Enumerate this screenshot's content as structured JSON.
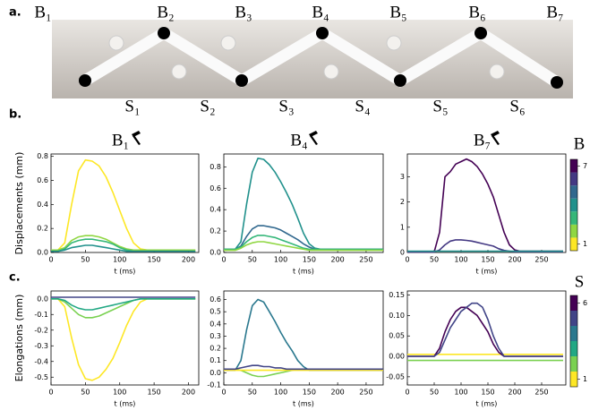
{
  "panel_labels": [
    "a.",
    "b.",
    "c."
  ],
  "photo": {
    "bars": [
      "B₁",
      "B₂",
      "B₃",
      "B₄",
      "B₅",
      "B₆",
      "B₇"
    ],
    "springs": [
      "S₁",
      "S₂",
      "S₃",
      "S₄",
      "S₅",
      "S₆"
    ]
  },
  "colorbars": [
    {
      "title": "B",
      "lim": [
        0.5,
        7.5
      ],
      "ticks": [
        1,
        7
      ],
      "colors": [
        "#fde725",
        "#90d743",
        "#35b779",
        "#21918c",
        "#31688e",
        "#443983",
        "#440154"
      ]
    },
    {
      "title": "S",
      "lim": [
        0.5,
        6.5
      ],
      "ticks": [
        1,
        6
      ],
      "colors": [
        "#fde725",
        "#7ad151",
        "#22a884",
        "#2a788e",
        "#414487",
        "#440154"
      ]
    }
  ],
  "chart_data": [
    {
      "type": "line",
      "title": "B₁",
      "ylabel": "Displacements (mm)",
      "xlabel": "t (ms)",
      "xlim": [
        0,
        215
      ],
      "xticks": [
        0,
        50,
        100,
        150,
        200
      ],
      "ylim": [
        0,
        0.82
      ],
      "yticks": [
        {
          "value": 0,
          "label": "0.0"
        },
        0.2,
        0.4,
        0.6,
        0.8
      ],
      "x": [
        0,
        10,
        20,
        30,
        40,
        50,
        60,
        70,
        80,
        90,
        100,
        110,
        120,
        130,
        140,
        150,
        160,
        170,
        180,
        190,
        200,
        210
      ],
      "series": [
        {
          "color": "#fde725",
          "values": [
            0.02,
            0.02,
            0.08,
            0.4,
            0.68,
            0.77,
            0.76,
            0.72,
            0.63,
            0.5,
            0.35,
            0.2,
            0.08,
            0.03,
            0.02,
            0.02,
            0.02,
            0.02,
            0.02,
            0.02,
            0.02,
            0.02
          ]
        },
        {
          "color": "#90d743",
          "values": [
            0.02,
            0.02,
            0.04,
            0.1,
            0.13,
            0.14,
            0.14,
            0.13,
            0.11,
            0.08,
            0.05,
            0.03,
            0.02,
            0.02,
            0.02,
            0.02,
            0.02,
            0.02,
            0.02,
            0.02,
            0.02,
            0.02
          ]
        },
        {
          "color": "#35b779",
          "values": [
            0.01,
            0.01,
            0.03,
            0.08,
            0.1,
            0.11,
            0.11,
            0.1,
            0.09,
            0.07,
            0.04,
            0.02,
            0.01,
            0.01,
            0.01,
            0.01,
            0.01,
            0.01,
            0.01,
            0.01,
            0.01,
            0.01
          ]
        },
        {
          "color": "#21918c",
          "values": [
            0.01,
            0.01,
            0.02,
            0.04,
            0.05,
            0.06,
            0.06,
            0.05,
            0.04,
            0.03,
            0.02,
            0.01,
            0.01,
            0.01,
            0.01,
            0.01,
            0.01,
            0.01,
            0.01,
            0.01,
            0.01,
            0.01
          ]
        }
      ]
    },
    {
      "type": "line",
      "title": "B₄",
      "xlabel": "t (ms)",
      "xlim": [
        0,
        280
      ],
      "xticks": [
        0,
        50,
        100,
        150,
        200,
        250
      ],
      "ylim": [
        0,
        0.92
      ],
      "yticks": [
        {
          "value": 0,
          "label": "0.0"
        },
        0.2,
        0.4,
        0.6,
        0.8
      ],
      "x": [
        0,
        10,
        20,
        30,
        40,
        50,
        60,
        70,
        80,
        90,
        100,
        110,
        120,
        130,
        140,
        150,
        160,
        170,
        180,
        190,
        200,
        210,
        220,
        230,
        240,
        250,
        260,
        270,
        280
      ],
      "series": [
        {
          "color": "#21918c",
          "values": [
            0.03,
            0.03,
            0.03,
            0.1,
            0.45,
            0.75,
            0.88,
            0.87,
            0.82,
            0.75,
            0.66,
            0.56,
            0.45,
            0.32,
            0.18,
            0.08,
            0.04,
            0.03,
            0.03,
            0.03,
            0.03,
            0.03,
            0.03,
            0.03,
            0.03,
            0.03,
            0.03,
            0.03,
            0.03
          ]
        },
        {
          "color": "#31688e",
          "values": [
            0.03,
            0.03,
            0.03,
            0.06,
            0.15,
            0.22,
            0.25,
            0.25,
            0.24,
            0.23,
            0.21,
            0.18,
            0.15,
            0.12,
            0.08,
            0.05,
            0.03,
            0.03,
            0.03,
            0.03,
            0.03,
            0.03,
            0.03,
            0.03,
            0.03,
            0.03,
            0.03,
            0.03,
            0.03
          ]
        },
        {
          "color": "#35b779",
          "values": [
            0.03,
            0.03,
            0.03,
            0.05,
            0.1,
            0.14,
            0.16,
            0.16,
            0.15,
            0.14,
            0.12,
            0.1,
            0.08,
            0.06,
            0.04,
            0.03,
            0.03,
            0.03,
            0.03,
            0.03,
            0.03,
            0.03,
            0.03,
            0.03,
            0.03,
            0.03,
            0.03,
            0.03,
            0.03
          ]
        },
        {
          "color": "#90d743",
          "values": [
            0.02,
            0.02,
            0.02,
            0.04,
            0.07,
            0.09,
            0.1,
            0.1,
            0.09,
            0.08,
            0.07,
            0.06,
            0.05,
            0.04,
            0.03,
            0.02,
            0.02,
            0.02,
            0.02,
            0.02,
            0.02,
            0.02,
            0.02,
            0.02,
            0.02,
            0.02,
            0.02,
            0.02,
            0.02
          ]
        }
      ]
    },
    {
      "type": "line",
      "title": "B₇",
      "xlabel": "t (ms)",
      "xlim": [
        0,
        295
      ],
      "xticks": [
        0,
        50,
        100,
        150,
        200,
        250
      ],
      "ylim": [
        0,
        3.9
      ],
      "yticks": [
        0,
        1,
        2,
        3
      ],
      "x": [
        0,
        10,
        20,
        30,
        40,
        50,
        60,
        70,
        80,
        90,
        100,
        110,
        120,
        130,
        140,
        150,
        160,
        170,
        180,
        190,
        200,
        210,
        220,
        230,
        240,
        250,
        260,
        270,
        280,
        290
      ],
      "series": [
        {
          "color": "#440154",
          "values": [
            0.02,
            0.02,
            0.02,
            0.02,
            0.02,
            0.02,
            0.8,
            3.0,
            3.2,
            3.5,
            3.6,
            3.7,
            3.6,
            3.4,
            3.1,
            2.7,
            2.2,
            1.5,
            0.8,
            0.3,
            0.1,
            0.05,
            0.05,
            0.05,
            0.05,
            0.05,
            0.05,
            0.05,
            0.05,
            0.05
          ]
        },
        {
          "color": "#443983",
          "values": [
            0.02,
            0.02,
            0.02,
            0.02,
            0.02,
            0.02,
            0.1,
            0.3,
            0.45,
            0.5,
            0.5,
            0.48,
            0.45,
            0.4,
            0.35,
            0.3,
            0.25,
            0.15,
            0.08,
            0.05,
            0.03,
            0.03,
            0.03,
            0.03,
            0.03,
            0.03,
            0.03,
            0.03,
            0.03,
            0.03
          ]
        },
        {
          "color": "#21918c",
          "values": [
            0.05,
            0.05,
            0.05,
            0.05,
            0.05,
            0.05,
            0.05,
            0.05,
            0.05,
            0.05,
            0.05,
            0.05,
            0.05,
            0.05,
            0.05,
            0.05,
            0.05,
            0.05,
            0.05,
            0.05,
            0.05,
            0.05,
            0.05,
            0.05,
            0.05,
            0.05,
            0.05,
            0.05,
            0.05,
            0.05
          ]
        }
      ]
    },
    {
      "type": "line",
      "ylabel": "Elongations (mm)",
      "xlabel": "t (ms)",
      "xlim": [
        0,
        215
      ],
      "xticks": [
        0,
        50,
        100,
        150,
        200
      ],
      "ylim": [
        -0.55,
        0.05
      ],
      "yticks": [
        {
          "value": 0,
          "label": "0.0"
        },
        -0.1,
        -0.2,
        -0.3,
        -0.4,
        -0.5
      ],
      "x": [
        0,
        10,
        20,
        30,
        40,
        50,
        60,
        70,
        80,
        90,
        100,
        110,
        120,
        130,
        140,
        150,
        160,
        170,
        180,
        190,
        200,
        210
      ],
      "series": [
        {
          "color": "#fde725",
          "values": [
            0,
            0,
            -0.05,
            -0.25,
            -0.42,
            -0.51,
            -0.52,
            -0.5,
            -0.45,
            -0.38,
            -0.28,
            -0.17,
            -0.08,
            -0.02,
            0,
            0,
            0,
            0,
            0,
            0,
            0,
            0
          ]
        },
        {
          "color": "#7ad151",
          "values": [
            0,
            0,
            -0.02,
            -0.06,
            -0.1,
            -0.12,
            -0.12,
            -0.11,
            -0.09,
            -0.07,
            -0.05,
            -0.03,
            -0.01,
            0,
            0,
            0,
            0,
            0,
            0,
            0,
            0,
            0
          ]
        },
        {
          "color": "#22a884",
          "values": [
            0,
            0,
            -0.01,
            -0.04,
            -0.06,
            -0.07,
            -0.07,
            -0.06,
            -0.05,
            -0.04,
            -0.03,
            -0.02,
            -0.01,
            0,
            0,
            0,
            0,
            0,
            0,
            0,
            0,
            0
          ]
        },
        {
          "color": "#414487",
          "values": [
            0.01,
            0.01,
            0.01,
            0.01,
            0.01,
            0.01,
            0.01,
            0.01,
            0.01,
            0.01,
            0.01,
            0.01,
            0.01,
            0.01,
            0.01,
            0.01,
            0.01,
            0.01,
            0.01,
            0.01,
            0.01,
            0.01
          ]
        }
      ]
    },
    {
      "type": "line",
      "xlabel": "t (ms)",
      "xlim": [
        0,
        280
      ],
      "xticks": [
        0,
        50,
        100,
        150,
        200,
        250
      ],
      "ylim": [
        -0.1,
        0.67
      ],
      "yticks": [
        -0.1,
        {
          "value": 0,
          "label": "0.0"
        },
        0.1,
        0.2,
        0.3,
        0.4,
        0.5,
        0.6
      ],
      "x": [
        0,
        10,
        20,
        30,
        40,
        50,
        60,
        70,
        80,
        90,
        100,
        110,
        120,
        130,
        140,
        150,
        160,
        170,
        180,
        190,
        200,
        210,
        220,
        230,
        240,
        250,
        260,
        270,
        280
      ],
      "series": [
        {
          "color": "#2a788e",
          "values": [
            0.02,
            0.02,
            0.02,
            0.1,
            0.35,
            0.55,
            0.6,
            0.58,
            0.5,
            0.42,
            0.33,
            0.25,
            0.18,
            0.1,
            0.05,
            0.02,
            0.02,
            0.02,
            0.02,
            0.02,
            0.02,
            0.02,
            0.02,
            0.02,
            0.02,
            0.02,
            0.02,
            0.02,
            0.02
          ]
        },
        {
          "color": "#7ad151",
          "values": [
            0.03,
            0.03,
            0.03,
            0.02,
            0,
            -0.02,
            -0.03,
            -0.03,
            -0.02,
            -0.01,
            0,
            0.01,
            0.02,
            0.03,
            0.03,
            0.03,
            0.03,
            0.03,
            0.03,
            0.03,
            0.03,
            0.03,
            0.03,
            0.03,
            0.03,
            0.03,
            0.03,
            0.03,
            0.03
          ]
        },
        {
          "color": "#fde725",
          "values": [
            0.02,
            0.02,
            0.02,
            0.02,
            0.02,
            0.02,
            0.02,
            0.02,
            0.02,
            0.02,
            0.02,
            0.02,
            0.02,
            0.02,
            0.02,
            0.02,
            0.02,
            0.02,
            0.02,
            0.02,
            0.02,
            0.02,
            0.02,
            0.02,
            0.02,
            0.02,
            0.02,
            0.02,
            0.02
          ]
        },
        {
          "color": "#414487",
          "values": [
            0.03,
            0.03,
            0.03,
            0.04,
            0.05,
            0.06,
            0.06,
            0.05,
            0.05,
            0.04,
            0.04,
            0.03,
            0.03,
            0.03,
            0.03,
            0.03,
            0.03,
            0.03,
            0.03,
            0.03,
            0.03,
            0.03,
            0.03,
            0.03,
            0.03,
            0.03,
            0.03,
            0.03,
            0.03
          ]
        }
      ]
    },
    {
      "type": "line",
      "xlabel": "t (ms)",
      "xlim": [
        0,
        295
      ],
      "xticks": [
        0,
        50,
        100,
        150,
        200,
        250
      ],
      "ylim": [
        -0.07,
        0.16
      ],
      "yticks": [
        -0.05,
        {
          "value": 0,
          "label": "0.00"
        },
        0.05,
        {
          "value": 0.1,
          "label": "0.10"
        },
        0.15
      ],
      "x": [
        0,
        10,
        20,
        30,
        40,
        50,
        60,
        70,
        80,
        90,
        100,
        110,
        120,
        130,
        140,
        150,
        160,
        170,
        180,
        190,
        200,
        210,
        220,
        230,
        240,
        250,
        260,
        270,
        280,
        290
      ],
      "series": [
        {
          "color": "#fde725",
          "values": [
            0.005,
            0.005,
            0.005,
            0.005,
            0.005,
            0.005,
            0.005,
            0.005,
            0.005,
            0.005,
            0.005,
            0.005,
            0.005,
            0.005,
            0.005,
            0.005,
            0.005,
            0.005,
            0.005,
            0.005,
            0.005,
            0.005,
            0.005,
            0.005,
            0.005,
            0.005,
            0.005,
            0.005,
            0.005,
            0.005
          ]
        },
        {
          "color": "#7ad151",
          "values": [
            -0.01,
            -0.01,
            -0.01,
            -0.01,
            -0.01,
            -0.01,
            -0.01,
            -0.01,
            -0.01,
            -0.01,
            -0.01,
            -0.01,
            -0.01,
            -0.01,
            -0.01,
            -0.01,
            -0.01,
            -0.01,
            -0.01,
            -0.01,
            -0.01,
            -0.01,
            -0.01,
            -0.01,
            -0.01,
            -0.01,
            -0.01,
            -0.01,
            -0.01,
            -0.01
          ]
        },
        {
          "color": "#440154",
          "values": [
            0,
            0,
            0,
            0,
            0,
            0,
            0.02,
            0.06,
            0.09,
            0.11,
            0.12,
            0.12,
            0.11,
            0.1,
            0.08,
            0.06,
            0.03,
            0.01,
            0,
            0,
            0,
            0,
            0,
            0,
            0,
            0,
            0,
            0,
            0,
            0
          ]
        },
        {
          "color": "#414487",
          "values": [
            0,
            0,
            0,
            0,
            0,
            0,
            0.01,
            0.04,
            0.07,
            0.09,
            0.11,
            0.12,
            0.13,
            0.13,
            0.12,
            0.09,
            0.05,
            0.02,
            0,
            0,
            0,
            0,
            0,
            0,
            0,
            0,
            0,
            0,
            0,
            0
          ]
        }
      ]
    }
  ]
}
